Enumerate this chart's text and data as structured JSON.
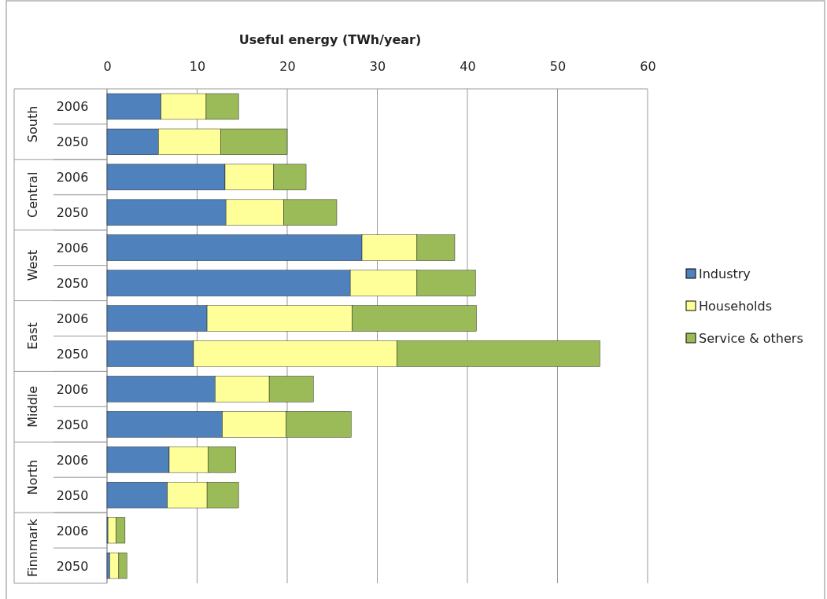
{
  "chart_data": {
    "type": "bar",
    "orientation": "horizontal",
    "stacked": true,
    "xlabel": "Useful energy (TWh/year)",
    "categories": [
      "2006",
      "2050",
      "2006",
      "2050",
      "2006",
      "2050",
      "2006",
      "2050",
      "2006",
      "2050",
      "2006",
      "2050",
      "2006",
      "2050"
    ],
    "annotations": [
      "South",
      "Central",
      "West",
      "East",
      "Middle",
      "North",
      "Finnmark"
    ],
    "series": [
      {
        "name": "Industry",
        "color": "#4f81bd",
        "values": [
          6.0,
          5.7,
          13.1,
          13.2,
          28.3,
          27.0,
          11.1,
          9.6,
          12.0,
          12.8,
          6.9,
          6.7,
          0.1,
          0.3
        ]
      },
      {
        "name": "Households",
        "color": "#ffff99",
        "values": [
          5.0,
          6.9,
          5.4,
          6.4,
          6.1,
          7.4,
          16.1,
          22.6,
          6.0,
          7.1,
          4.3,
          4.4,
          0.9,
          1.0
        ]
      },
      {
        "name": "Service & others",
        "color": "#9bbb59",
        "values": [
          3.6,
          7.4,
          3.6,
          5.9,
          4.2,
          6.5,
          13.8,
          22.5,
          4.9,
          7.2,
          3.1,
          3.5,
          1.0,
          0.9
        ]
      }
    ],
    "xlim": [
      0,
      60
    ],
    "xticks": [
      0,
      10,
      20,
      30,
      40,
      50,
      60
    ],
    "grid": "x",
    "legend": "right"
  }
}
